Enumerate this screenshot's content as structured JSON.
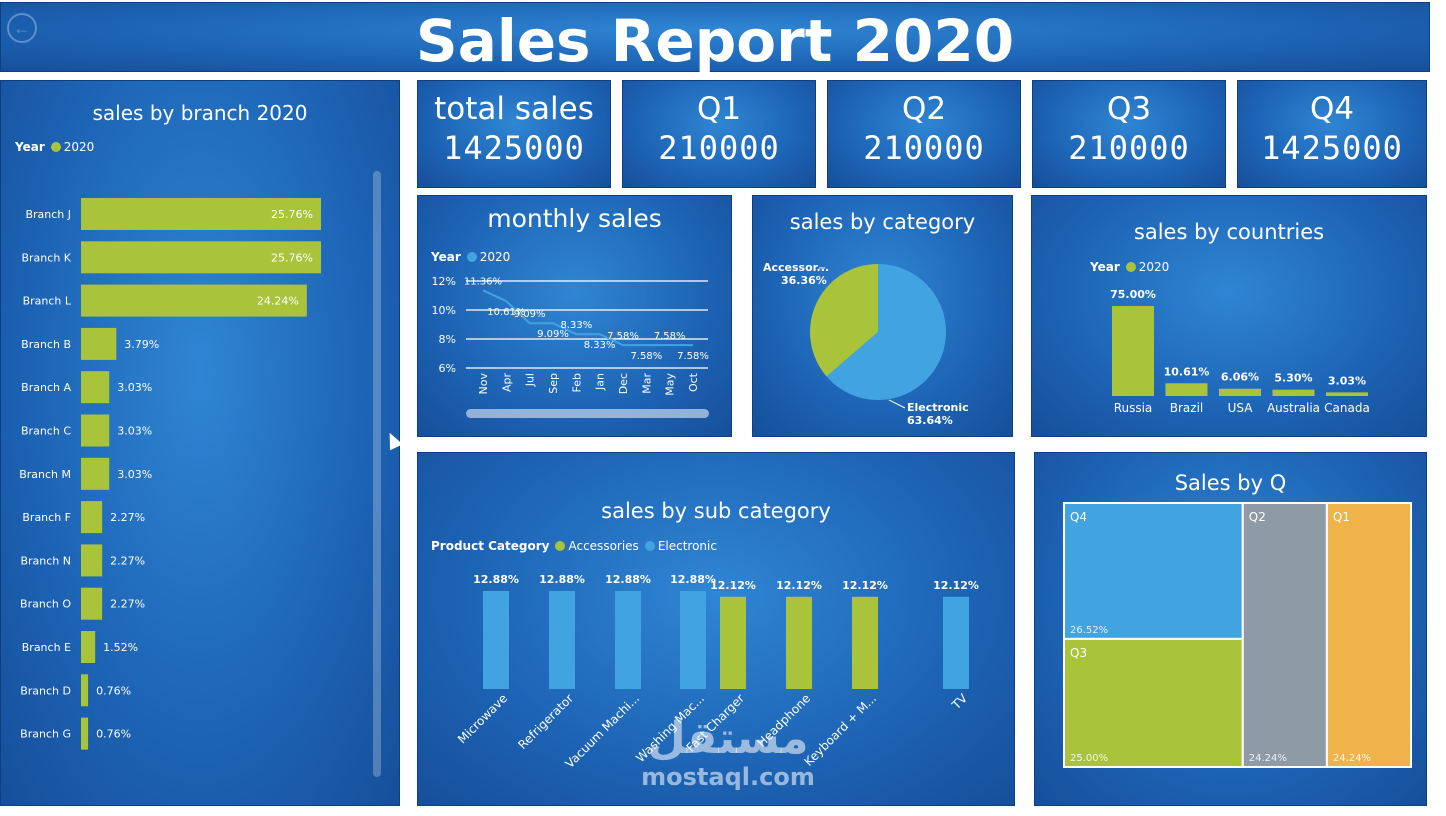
{
  "header": {
    "title": "Sales Report 2020"
  },
  "kpis": [
    {
      "label": "total sales",
      "value": "1425000"
    },
    {
      "label": "Q1",
      "value": "210000"
    },
    {
      "label": "Q2",
      "value": "210000"
    },
    {
      "label": "Q3",
      "value": "210000"
    },
    {
      "label": "Q4",
      "value": "1425000"
    }
  ],
  "colors": {
    "green": "#a9c43b",
    "blue": "#41a4e0",
    "grey": "#8e9aa6",
    "orange": "#f0b34a",
    "background": "#1d63b4"
  },
  "branch_panel": {
    "title": "sales by branch 2020",
    "legend_label": "Year",
    "legend_item": "2020"
  },
  "monthly_panel": {
    "title": "monthly sales",
    "legend_label": "Year",
    "legend_item": "2020"
  },
  "category_panel": {
    "title": "sales by category"
  },
  "countries_panel": {
    "title": "sales by countries",
    "legend_label": "Year",
    "legend_item": "2020"
  },
  "subcat_panel": {
    "title": "sales by sub category",
    "legend_label": "Product Category",
    "legend_items": [
      "Accessories",
      "Electronic"
    ]
  },
  "q_panel": {
    "title": "Sales by Q"
  },
  "watermark": {
    "arabic": "مستقل",
    "latin": "mostaql.com"
  },
  "chart_data": [
    {
      "type": "bar",
      "orientation": "horizontal",
      "title": "sales by branch 2020",
      "categories": [
        "Branch J",
        "Branch K",
        "Branch L",
        "Branch B",
        "Branch A",
        "Branch C",
        "Branch M",
        "Branch F",
        "Branch N",
        "Branch O",
        "Branch E",
        "Branch D",
        "Branch G"
      ],
      "values": [
        25.76,
        25.76,
        24.24,
        3.79,
        3.03,
        3.03,
        3.03,
        2.27,
        2.27,
        2.27,
        1.52,
        0.76,
        0.76
      ],
      "labels": [
        "25.76%",
        "25.76%",
        "24.24%",
        "3.79%",
        "3.03%",
        "3.03%",
        "3.03%",
        "2.27%",
        "2.27%",
        "2.27%",
        "1.52%",
        "0.76%",
        "0.76%"
      ],
      "series": [
        {
          "name": "2020"
        }
      ],
      "legend": "top-left"
    },
    {
      "type": "line",
      "title": "monthly sales",
      "categories": [
        "Nov",
        "Apr",
        "Jul",
        "Sep",
        "Feb",
        "Jan",
        "Dec",
        "Mar",
        "May",
        "Oct"
      ],
      "values": [
        11.36,
        10.61,
        9.09,
        9.09,
        8.33,
        8.33,
        7.58,
        7.58,
        7.58,
        7.58
      ],
      "labels": [
        "11.36%",
        "10.61%",
        "9.09%",
        "9.09%",
        "8.33%",
        "8.33%",
        "7.58%",
        "7.58%",
        "7.58%",
        "7.58%"
      ],
      "yticks": [
        "12%",
        "10%",
        "8%",
        "6%"
      ],
      "ylim": [
        6,
        12
      ],
      "series": [
        {
          "name": "2020"
        }
      ]
    },
    {
      "type": "pie",
      "title": "sales by category",
      "categories": [
        "Accessor...",
        "Electronic"
      ],
      "values": [
        36.36,
        63.64
      ],
      "labels": [
        "36.36%",
        "63.64%"
      ]
    },
    {
      "type": "bar",
      "title": "sales by countries",
      "categories": [
        "Russia",
        "Brazil",
        "USA",
        "Australia",
        "Canada"
      ],
      "values": [
        75.0,
        10.61,
        6.06,
        5.3,
        3.03
      ],
      "labels": [
        "75.00%",
        "10.61%",
        "6.06%",
        "5.30%",
        "3.03%"
      ],
      "series": [
        {
          "name": "2020"
        }
      ]
    },
    {
      "type": "bar",
      "title": "sales by sub category",
      "categories": [
        "Microwave",
        "Refrigerator",
        "Vacuum Machi...",
        "Washing Mac...",
        "Fast Charger",
        "Headphone",
        "Keyboard + M...",
        "TV"
      ],
      "values": [
        12.88,
        12.88,
        12.88,
        12.88,
        12.12,
        12.12,
        12.12,
        12.12
      ],
      "labels": [
        "12.88%",
        "12.88%",
        "12.88%",
        "12.88%",
        "12.12%",
        "12.12%",
        "12.12%",
        "12.12%"
      ],
      "category_series": [
        "Electronic",
        "Electronic",
        "Electronic",
        "Electronic",
        "Accessories",
        "Accessories",
        "Accessories",
        "Electronic"
      ],
      "series": [
        {
          "name": "Accessories"
        },
        {
          "name": "Electronic"
        }
      ]
    },
    {
      "type": "treemap",
      "title": "Sales by Q",
      "categories": [
        "Q4",
        "Q3",
        "Q2",
        "Q1"
      ],
      "values": [
        26.52,
        25.0,
        24.24,
        24.24
      ],
      "labels": [
        "26.52%",
        "25.00%",
        "24.24%",
        "24.24%"
      ]
    }
  ]
}
